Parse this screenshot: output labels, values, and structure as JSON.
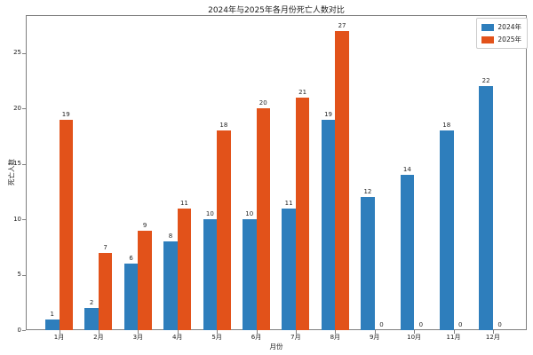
{
  "chart_data": {
    "type": "bar",
    "title": "2024年与2025年各月份死亡人数对比",
    "xlabel": "月份",
    "ylabel": "死亡人数",
    "categories": [
      "1月",
      "2月",
      "3月",
      "4月",
      "5月",
      "6月",
      "7月",
      "8月",
      "9月",
      "10月",
      "11月",
      "12月"
    ],
    "series": [
      {
        "name": "2024年",
        "color": "#2e7ebc",
        "values": [
          1,
          2,
          6,
          8,
          10,
          10,
          11,
          19,
          12,
          14,
          18,
          22
        ]
      },
      {
        "name": "2025年",
        "color": "#e2521a",
        "values": [
          19,
          7,
          9,
          11,
          18,
          20,
          21,
          27,
          0,
          0,
          0,
          0
        ]
      }
    ],
    "yticks": [
      0,
      5,
      10,
      15,
      20,
      25
    ],
    "ylim": [
      0,
      28.4
    ],
    "grid": false,
    "legend_position": "upper right",
    "bar_value_labels": true,
    "axis_color": "#7f7f7f",
    "background_color": "#ffffff"
  }
}
